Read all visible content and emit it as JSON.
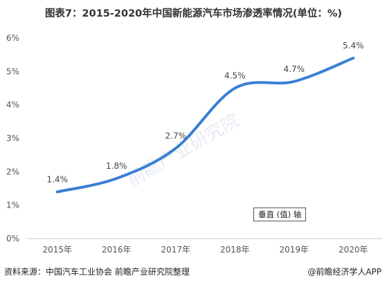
{
  "chart_data": {
    "type": "line",
    "title": "图表7：2015-2020年中国新能源汽车市场渗透率情况(单位：%)",
    "categories": [
      "2015年",
      "2016年",
      "2017年",
      "2018年",
      "2019年",
      "2020年"
    ],
    "series": [
      {
        "values": [
          1.4,
          1.8,
          2.7,
          4.5,
          4.7,
          5.4
        ]
      }
    ],
    "data_labels": [
      "1.4%",
      "1.8%",
      "2.7%",
      "4.5%",
      "4.7%",
      "5.4%"
    ],
    "yticks": [
      "0%",
      "1%",
      "2%",
      "3%",
      "4%",
      "5%",
      "6%"
    ],
    "ylim": [
      0,
      6
    ],
    "grid": false,
    "line_color": "#3a7fd5",
    "axis_note": "垂直 (值) 轴"
  },
  "footer": {
    "source": "资料来源：中国汽车工业协会 前瞻产业研究院整理",
    "brand": "@前瞻经济学人APP"
  },
  "watermark": {
    "text": "前瞻产业研究院"
  }
}
